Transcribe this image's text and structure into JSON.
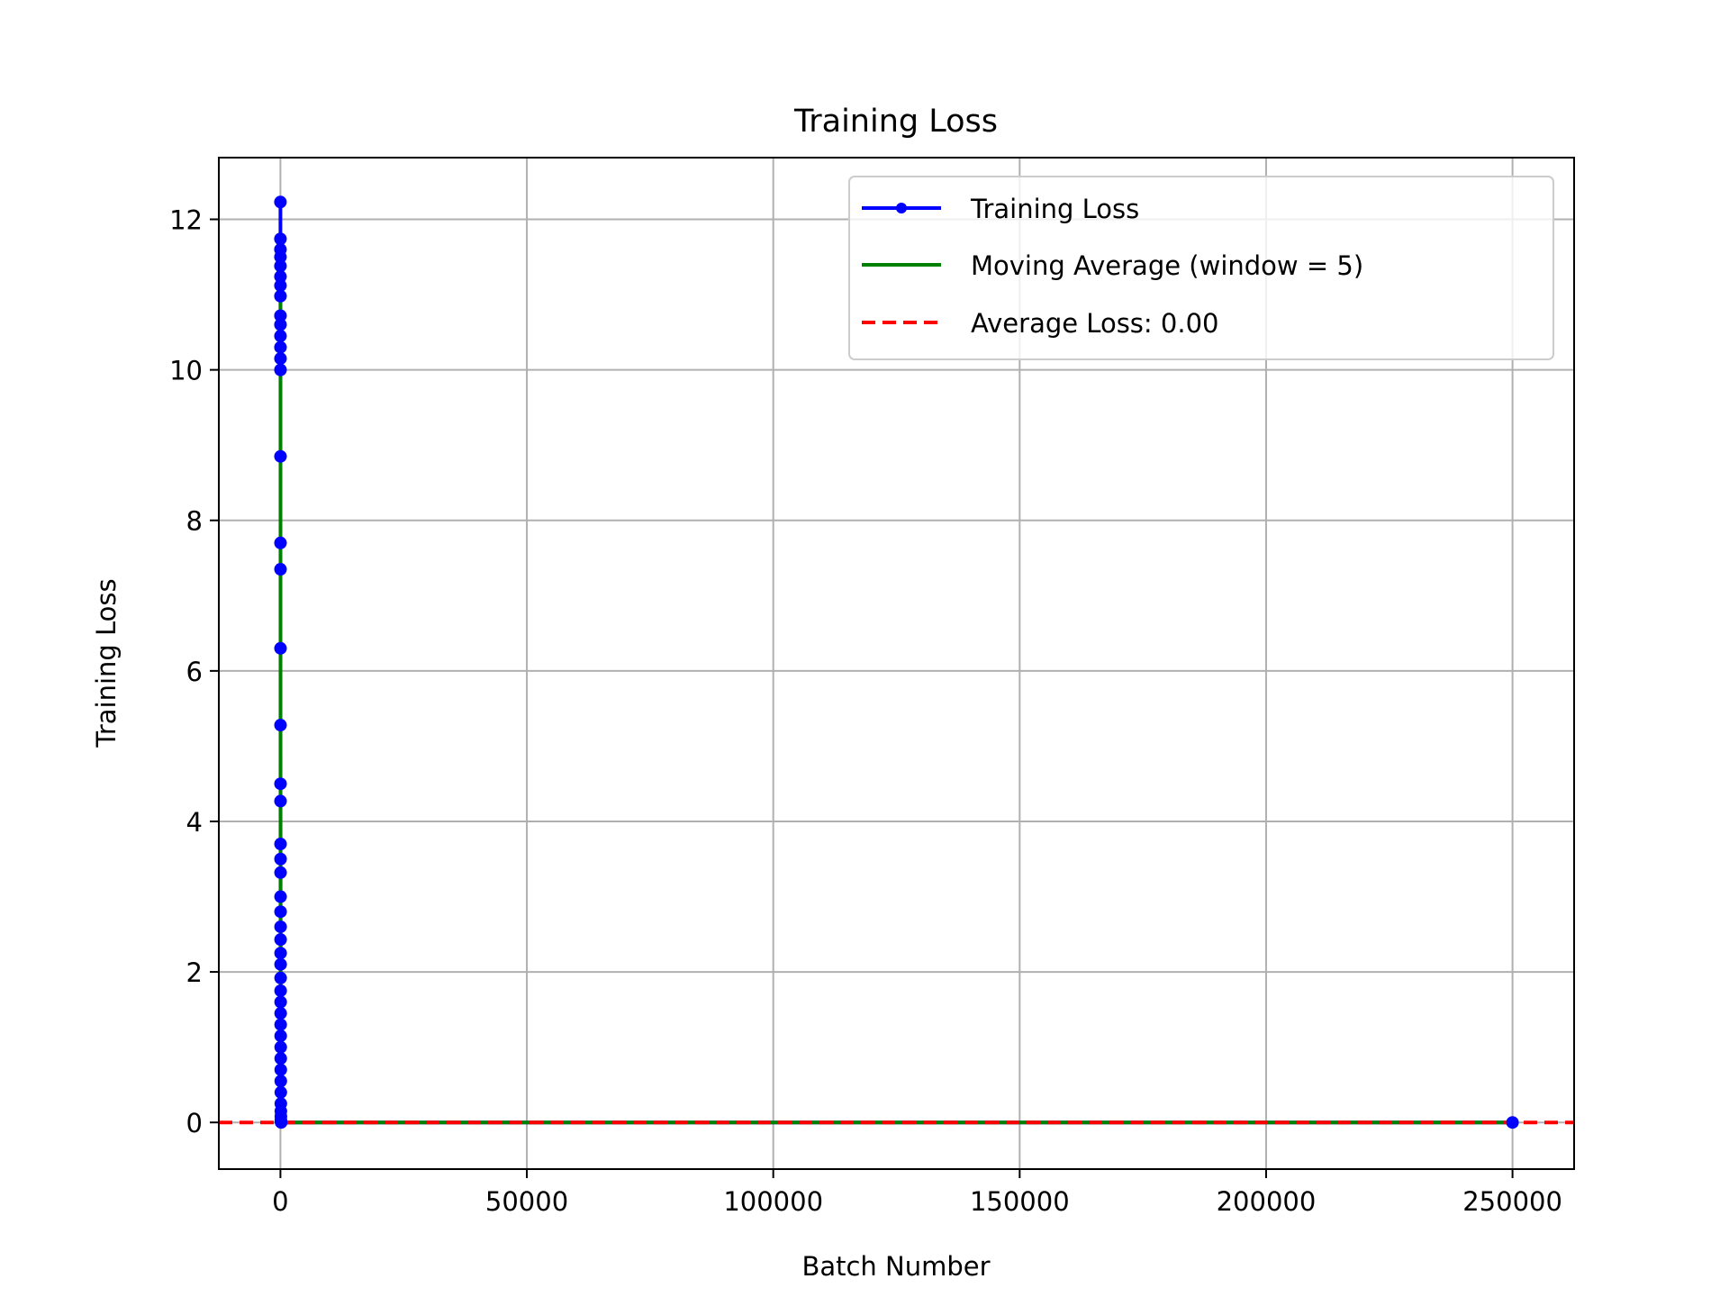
{
  "chart_data": {
    "type": "line",
    "title": "Training Loss",
    "xlabel": "Batch Number",
    "ylabel": "Training Loss",
    "xlim": [
      -12500,
      262500
    ],
    "ylim": [
      -0.62,
      12.82
    ],
    "xticks": [
      0,
      50000,
      100000,
      150000,
      200000,
      250000
    ],
    "xtick_labels": [
      "0",
      "50000",
      "100000",
      "150000",
      "200000",
      "250000"
    ],
    "yticks": [
      0,
      2,
      4,
      6,
      8,
      10,
      12
    ],
    "ytick_labels": [
      "0",
      "2",
      "4",
      "6",
      "8",
      "10",
      "12"
    ],
    "grid": true,
    "legend_position": "top-right",
    "series": [
      {
        "name": "Training Loss",
        "style": "line-with-markers",
        "color": "#0000ff",
        "x": [
          0,
          1,
          2,
          3,
          4,
          5,
          6,
          7,
          8,
          9,
          10,
          11,
          12,
          13,
          14,
          15,
          16,
          17,
          18,
          19,
          20,
          22,
          24,
          26,
          28,
          30,
          32,
          34,
          36,
          38,
          40,
          42,
          44,
          46,
          48,
          50,
          55,
          60,
          65,
          70,
          75,
          80,
          85,
          90,
          95,
          100,
          150,
          250000
        ],
        "y": [
          12.23,
          11.74,
          11.6,
          11.5,
          11.38,
          11.24,
          11.12,
          10.98,
          10.72,
          10.6,
          10.45,
          10.3,
          10.15,
          10.0,
          8.85,
          7.7,
          7.35,
          6.3,
          5.28,
          4.5,
          4.27,
          3.7,
          3.5,
          3.32,
          3.0,
          2.8,
          2.6,
          2.43,
          2.25,
          2.1,
          1.92,
          1.75,
          1.6,
          1.45,
          1.3,
          1.15,
          1.0,
          0.85,
          0.7,
          0.55,
          0.4,
          0.25,
          0.15,
          0.08,
          0.03,
          0.01,
          0.0,
          0.0
        ]
      },
      {
        "name": "Moving Average (window = 5)",
        "style": "line",
        "color": "#008000",
        "x": [
          4,
          6,
          8,
          10,
          12,
          14,
          16,
          18,
          20,
          24,
          28,
          32,
          36,
          40,
          50,
          60,
          70,
          80,
          90,
          100,
          150,
          250000
        ],
        "y": [
          11.69,
          11.46,
          11.18,
          10.85,
          10.45,
          9.8,
          8.9,
          7.8,
          6.6,
          4.8,
          3.6,
          2.9,
          2.4,
          2.0,
          1.4,
          0.9,
          0.55,
          0.3,
          0.12,
          0.04,
          0.0,
          0.0
        ]
      },
      {
        "name": "Average Loss: 0.00",
        "style": "dashed-horizontal",
        "color": "#ff0000",
        "value": 0.0
      }
    ]
  }
}
